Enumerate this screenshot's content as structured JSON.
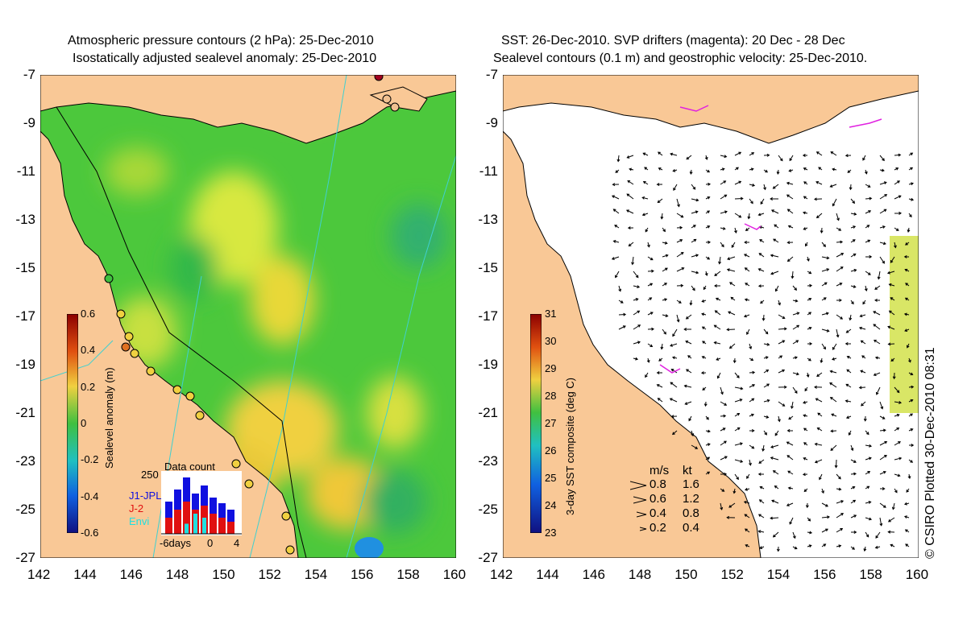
{
  "left": {
    "title1": "Atmospheric pressure contours (2 hPa): 25-Dec-2010",
    "title2": "Isostatically adjusted sealevel anomaly: 25-Dec-2010",
    "colorbar": {
      "label": "Sealevel anomaly (m)",
      "ticks": [
        "0.6",
        "0.4",
        "0.2",
        "0",
        "-0.2",
        "-0.4",
        "-0.6"
      ]
    },
    "inset": {
      "title": "Data count",
      "ymax": "250",
      "sat1": "J1-JPL",
      "sat2": "J-2",
      "sat3": "Envi",
      "xt1": "-6days",
      "xt2": "0",
      "xt3": "4",
      "colors": {
        "j1": "#1010e0",
        "j2": "#e01010",
        "envi": "#20e0e0"
      }
    }
  },
  "right": {
    "title1": "SST: 26-Dec-2010. SVP drifters (magenta): 20 Dec - 28 Dec",
    "title2": "Sealevel contours (0.1 m) and geostrophic velocity: 25-Dec-2010.",
    "colorbar": {
      "label": "3-day SST composite (deg C)",
      "ticks": [
        "31",
        "30",
        "29",
        "28",
        "27",
        "26",
        "25",
        "24",
        "23"
      ]
    },
    "speed_legend": {
      "header_ms": "m/s",
      "header_kt": "kt",
      "rows": [
        {
          "ms": "0.8",
          "kt": "1.6"
        },
        {
          "ms": "0.6",
          "kt": "1.2"
        },
        {
          "ms": "0.4",
          "kt": "0.8"
        },
        {
          "ms": "0.2",
          "kt": "0.4"
        }
      ]
    }
  },
  "axes": {
    "lat_ticks": [
      "-7",
      "-9",
      "-11",
      "-13",
      "-15",
      "-17",
      "-19",
      "-21",
      "-23",
      "-25",
      "-27"
    ],
    "lon_ticks": [
      "142",
      "144",
      "146",
      "148",
      "150",
      "152",
      "154",
      "156",
      "158",
      "160"
    ]
  },
  "credit": "© CSIRO Plotted 30-Dec-2010 08:31",
  "colors": {
    "land": "#f9c896",
    "green": "#3cc63c",
    "yellow": "#f0e040",
    "orange": "#f5b030",
    "cyan": "#40c8c8",
    "magenta": "#e020e0"
  }
}
